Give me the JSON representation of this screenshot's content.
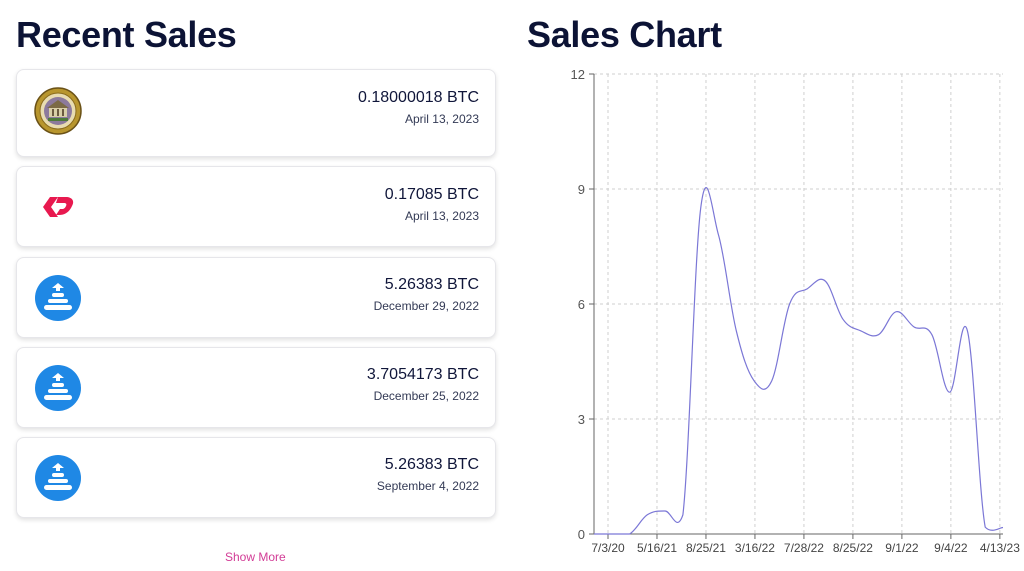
{
  "recent_sales": {
    "title": "Recent Sales",
    "show_more_label": "Show More",
    "items": [
      {
        "icon": "seal-badge-icon",
        "amount": "0.18000018 BTC",
        "date": "April 13, 2023"
      },
      {
        "icon": "pink-logo-icon",
        "amount": "0.17085 BTC",
        "date": "April 13, 2023"
      },
      {
        "icon": "blue-stack-icon",
        "amount": "5.26383 BTC",
        "date": "December 29, 2022"
      },
      {
        "icon": "blue-stack-icon",
        "amount": "3.7054173 BTC",
        "date": "December 25, 2022"
      },
      {
        "icon": "blue-stack-icon",
        "amount": "5.26383 BTC",
        "date": "September 4, 2022"
      }
    ]
  },
  "colors": {
    "title": "#0c1335",
    "accent_pink": "#e8194f",
    "icon_blue": "#1f88e5",
    "show_more": "#d23c96",
    "chart_line": "#7b77d6",
    "grid": "#cfcfcf"
  },
  "sales_chart": {
    "title": "Sales Chart"
  },
  "chart_data": {
    "type": "line",
    "title": "Sales Chart",
    "xlabel": "",
    "ylabel": "",
    "ylim": [
      0,
      12
    ],
    "yticks": [
      0,
      3,
      6,
      9,
      12
    ],
    "grid": true,
    "x_tick_labels": [
      "7/3/20",
      "5/16/21",
      "8/25/21",
      "3/16/22",
      "7/28/22",
      "8/25/22",
      "9/1/22",
      "9/4/22",
      "4/13/23"
    ],
    "series": [
      {
        "values": [
          0,
          0,
          0,
          0.5,
          0.6,
          0.5,
          8.5,
          7.8,
          5.3,
          4.0,
          4.0,
          6.0,
          6.4,
          6.6,
          5.6,
          5.3,
          5.2,
          5.8,
          5.4,
          5.2,
          3.7,
          5.3,
          0.18,
          0.17
        ]
      }
    ]
  }
}
